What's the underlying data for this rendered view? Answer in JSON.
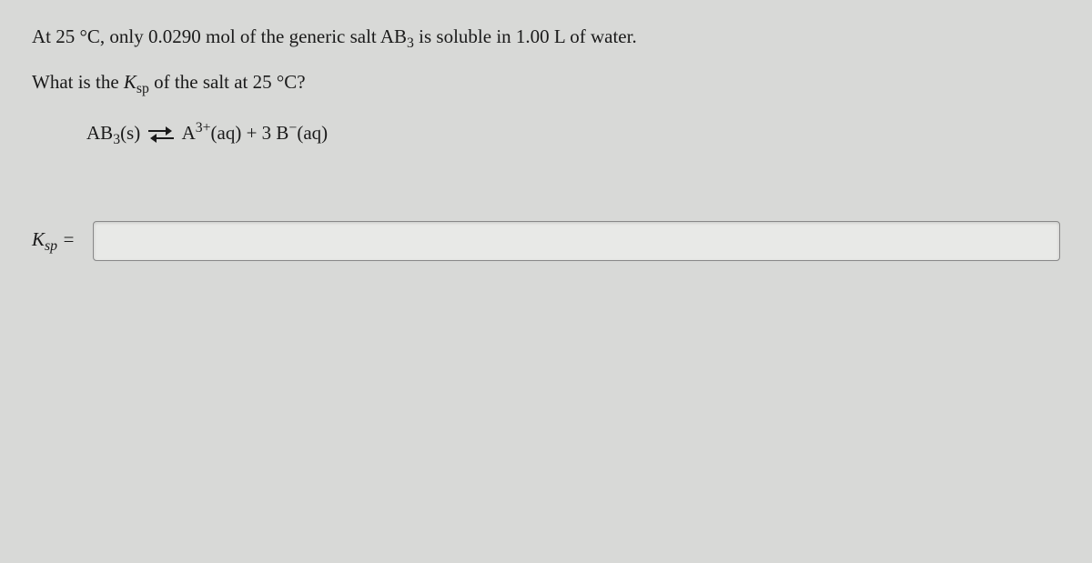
{
  "question": {
    "line1_prefix": "At 25 °C, only ",
    "solubility_value": "0.0290",
    "line1_mid": " mol of the generic salt AB",
    "salt_subscript": "3",
    "line1_suffix": " is soluble in 1.00 L of water.",
    "line2_prefix": "What is the ",
    "ksp_symbol": "K",
    "ksp_sub": "sp",
    "line2_suffix": " of the salt at 25 °C?"
  },
  "equation": {
    "reactant_formula": "AB",
    "reactant_sub": "3",
    "reactant_phase": "(s)",
    "product1_formula": "A",
    "product1_charge": "3+",
    "product1_phase": "(aq)",
    "plus": " + ",
    "product2_coeff": "3 ",
    "product2_formula": "B",
    "product2_charge": "−",
    "product2_phase": "(aq)"
  },
  "answer": {
    "label_symbol": "K",
    "label_sub": "sp",
    "equals": " =",
    "input_value": ""
  },
  "style": {
    "background_color": "#d8d9d7",
    "text_color": "#1a1a1a",
    "input_background": "#e8e9e7",
    "input_border": "#888",
    "font_family": "Georgia, Times New Roman, serif",
    "body_fontsize": 21
  }
}
